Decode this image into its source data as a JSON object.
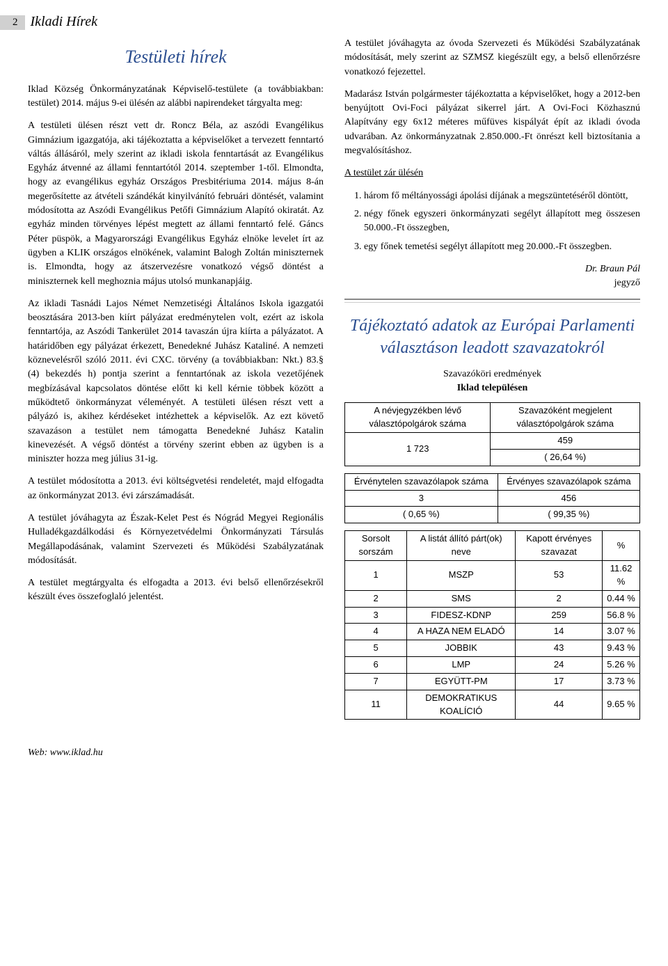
{
  "header": {
    "page_number": "2",
    "publication": "Ikladi Hírek"
  },
  "left_column": {
    "title": "Testületi hírek",
    "p1": "Iklad Község Önkormányzatának Képviselő-testülete (a továbbiakban: testület) 2014. május 9-ei ülésén az alábbi napirendeket tárgyalta meg:",
    "p2": "A testületi ülésen részt vett dr. Roncz Béla, az aszódi Evangélikus Gimnázium igazgatója, aki tájékoztatta a képviselőket a tervezett fenntartó váltás állásáról, mely szerint az ikladi iskola fenntartását az Evangélikus Egyház átvenné az állami fenntartótól 2014. szeptember 1-től. Elmondta, hogy az evangélikus egyház Országos Presbitériuma 2014. május 8-án megerősítette az átvételi szándékát kinyilvánító februári döntését, valamint módosította az Aszódi Evangélikus Petőfi Gimnázium Alapító okiratát. Az egyház minden törvényes lépést megtett az állami fenntartó felé. Gáncs Péter püspök, a Magyarországi Evangélikus Egyház elnöke levelet írt az ügyben a KLIK országos elnökének, valamint Balogh Zoltán miniszternek is. Elmondta, hogy az átszervezésre vonatkozó végső döntést a miniszternek kell meghoznia május utolsó munkanapjáig.",
    "p3": "Az ikladi Tasnádi Lajos Német Nemzetiségi Általános Iskola igazgatói beosztására 2013-ben kiírt pályázat eredménytelen volt, ezért az iskola fenntartója, az Aszódi Tankerület 2014 tavaszán újra kiírta a pályázatot. A határidőben egy pályázat érkezett, Benedekné Juhász Kataliné. A nemzeti köznevelésről szóló 2011. évi CXC. törvény (a továbbiakban: Nkt.) 83.§ (4) bekezdés h) pontja szerint a fenntartónak az iskola vezetőjének megbízásával kapcsolatos döntése előtt ki kell kérnie többek között a működtető önkormányzat véleményét. A testületi ülésen részt vett a pályázó is, akihez kérdéseket intézhettek a képviselők. Az ezt követő szavazáson a testület nem támogatta Benedekné Juhász Katalin kinevezését. A végső döntést a törvény szerint ebben az ügyben is a miniszter hozza meg július 31-ig.",
    "p4": "A testület módosította a 2013. évi költségvetési rendeletét, majd elfogadta az önkormányzat 2013. évi zárszámadását.",
    "p5": "A testület jóváhagyta az Észak-Kelet Pest és Nógrád Megyei Regionális Hulladékgazdálkodási és Környezetvédelmi Önkormányzati Társulás Megállapodásának, valamint Szervezeti és Működési Szabályzatának módosítását.",
    "p6": "A testület megtárgyalta és elfogadta a 2013. évi belső ellenőrzésekről készült éves összefoglaló jelentést."
  },
  "right_column": {
    "p1": "A testület jóváhagyta az óvoda Szervezeti és Működési Szabályzatának módosítását, mely szerint az SZMSZ kiegészült egy, a belső ellenőrzésre vonatkozó fejezettel.",
    "p2": "Madarász István polgármester tájékoztatta a képviselőket, hogy a 2012-ben benyújtott Ovi-Foci pályázat sikerrel járt. A Ovi-Foci Közhasznú Alapítvány egy 6x12 méteres műfüves kispályát épít az ikladi óvoda udvarában. Az önkormányzatnak 2.850.000.-Ft önrészt kell biztosítania a megvalósításhoz.",
    "closed_label": "A testület zár ülésén",
    "list_items": [
      "három fő méltányossági ápolási díjának a megszüntetéséről döntött,",
      "négy főnek egyszeri önkormányzati segélyt állapított meg összesen 50.000.-Ft összegben,",
      "egy főnek temetési segélyt állapított meg 20.000.-Ft összegben."
    ],
    "sig_name": "Dr. Braun Pál",
    "sig_role": "jegyző",
    "vote_title": "Tájékoztató adatok az Európai Parlamenti választáson leadott szavazatokról",
    "vote_sub1": "Szavazóköri eredmények",
    "vote_sub2": "Iklad településen",
    "table1": {
      "h1": "A névjegyzékben lévő választópolgárok száma",
      "h2": "Szavazóként megjelent választópolgárok száma",
      "v1": "1 723",
      "v2a": "459",
      "v2b": "( 26,64 %)"
    },
    "table2": {
      "h1": "Érvénytelen szavazólapok száma",
      "h2": "Érvényes szavazólapok száma",
      "v1a": "3",
      "v1b": "( 0,65 %)",
      "v2a": "456",
      "v2b": "( 99,35 %)"
    },
    "table3": {
      "headers": [
        "Sorsolt sorszám",
        "A listát állító párt(ok) neve",
        "Kapott érvényes szavazat",
        "%"
      ],
      "rows": [
        [
          "1",
          "MSZP",
          "53",
          "11.62 %"
        ],
        [
          "2",
          "SMS",
          "2",
          "0.44 %"
        ],
        [
          "3",
          "FIDESZ-KDNP",
          "259",
          "56.8 %"
        ],
        [
          "4",
          "A HAZA NEM ELADÓ",
          "14",
          "3.07 %"
        ],
        [
          "5",
          "JOBBIK",
          "43",
          "9.43 %"
        ],
        [
          "6",
          "LMP",
          "24",
          "5.26 %"
        ],
        [
          "7",
          "EGYÜTT-PM",
          "17",
          "3.73 %"
        ],
        [
          "11",
          "DEMOKRATIKUS KOALÍCIÓ",
          "44",
          "9.65 %"
        ]
      ]
    }
  },
  "footer": "Web: www.iklad.hu"
}
